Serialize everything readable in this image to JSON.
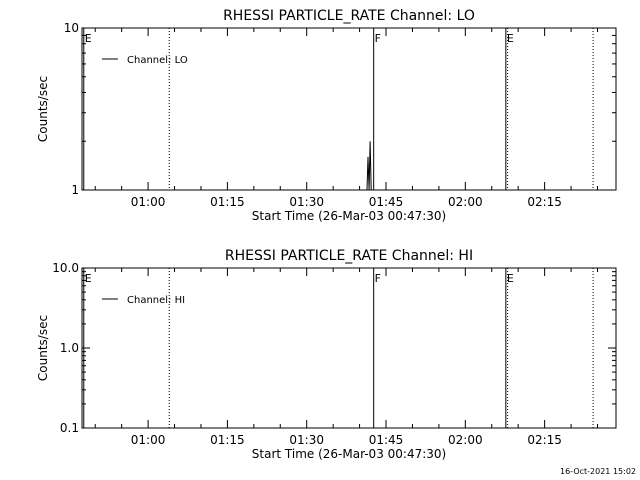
{
  "chart_data": [
    {
      "type": "line",
      "title": "RHESSI PARTICLE_RATE Channel: LO",
      "xlabel": "Start Time (26-Mar-03 00:47:30)",
      "ylabel": "Counts/sec",
      "y_scale": "log",
      "ylim": [
        1,
        10
      ],
      "y_tick_labels": [
        "1",
        "10"
      ],
      "x_range": [
        "00:47:30",
        "02:28:30"
      ],
      "x_ticks": [
        "01:00",
        "01:15",
        "01:30",
        "01:45",
        "02:00",
        "02:15"
      ],
      "legend": {
        "placement": "top-left",
        "entries": [
          "Channel: LO"
        ]
      },
      "series": [
        {
          "name": "Channel: LO",
          "x": [
            "01:41:12",
            "01:41:24",
            "01:41:36",
            "01:41:48",
            "01:42:00",
            "01:42:12"
          ],
          "y": [
            1,
            1,
            1.6,
            1,
            2.0,
            1
          ]
        }
      ],
      "markers": [
        {
          "time": "00:47:50",
          "label": "E",
          "style": "solid"
        },
        {
          "time": "01:04:00",
          "label": "",
          "style": "dotted"
        },
        {
          "time": "01:42:40",
          "label": "F",
          "style": "solid"
        },
        {
          "time": "02:07:40",
          "label": "E",
          "style": "solid"
        },
        {
          "time": "02:08:00",
          "label": "",
          "style": "dotted"
        },
        {
          "time": "02:24:10",
          "label": "",
          "style": "dotted"
        }
      ]
    },
    {
      "type": "line",
      "title": "RHESSI PARTICLE_RATE Channel: HI",
      "xlabel": "Start Time (26-Mar-03 00:47:30)",
      "ylabel": "Counts/sec",
      "y_scale": "log",
      "ylim": [
        0.1,
        10
      ],
      "y_tick_labels": [
        "0.1",
        "1.0",
        "10.0"
      ],
      "x_range": [
        "00:47:30",
        "02:28:30"
      ],
      "x_ticks": [
        "01:00",
        "01:15",
        "01:30",
        "01:45",
        "02:00",
        "02:15"
      ],
      "legend": {
        "placement": "top-left",
        "entries": [
          "Channel: HI"
        ]
      },
      "series": [
        {
          "name": "Channel: HI",
          "x": [],
          "y": []
        }
      ],
      "markers": [
        {
          "time": "00:47:50",
          "label": "E",
          "style": "solid"
        },
        {
          "time": "01:04:00",
          "label": "",
          "style": "dotted"
        },
        {
          "time": "01:42:40",
          "label": "F",
          "style": "solid"
        },
        {
          "time": "02:07:40",
          "label": "E",
          "style": "solid"
        },
        {
          "time": "02:08:00",
          "label": "",
          "style": "dotted"
        },
        {
          "time": "02:24:10",
          "label": "",
          "style": "dotted"
        }
      ]
    }
  ],
  "timestamp": "16-Oct-2021 15:02"
}
